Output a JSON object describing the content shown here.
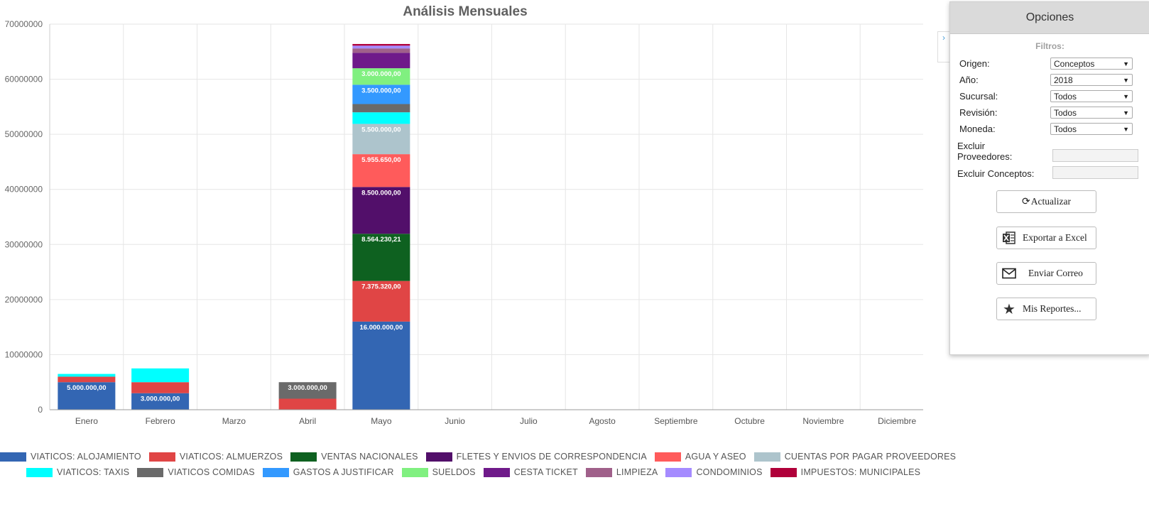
{
  "chart_data": {
    "type": "bar",
    "stacked": true,
    "title": "Análisis Mensuales",
    "categories": [
      "Enero",
      "Febrero",
      "Marzo",
      "Abril",
      "Mayo",
      "Junio",
      "Julio",
      "Agosto",
      "Septiembre",
      "Octubre",
      "Noviembre",
      "Diciembre"
    ],
    "ylim": [
      0,
      70000000
    ],
    "yticks": [
      0,
      10000000,
      20000000,
      30000000,
      40000000,
      50000000,
      60000000,
      70000000
    ],
    "ytick_labels": [
      "0",
      "10000000",
      "20000000",
      "30000000",
      "40000000",
      "50000000",
      "60000000",
      "70000000"
    ],
    "grid": true,
    "legend_position": "bottom",
    "series": [
      {
        "name": "VIATICOS: ALOJAMIENTO",
        "color": "#3366b3",
        "values": [
          5000000,
          3000000,
          0,
          0,
          16000000,
          0,
          0,
          0,
          0,
          0,
          0,
          0
        ],
        "labels": [
          "5.000.000,00",
          "3.000.000,00",
          "",
          "",
          "16.000.000,00",
          "",
          "",
          "",
          "",
          "",
          "",
          ""
        ]
      },
      {
        "name": "VIATICOS: ALMUERZOS",
        "color": "#e04545",
        "values": [
          1000000,
          2000000,
          0,
          2000000,
          7375320,
          0,
          0,
          0,
          0,
          0,
          0,
          0
        ],
        "labels": [
          "",
          "",
          "",
          "",
          "7.375.320,00",
          "",
          "",
          "",
          "",
          "",
          "",
          ""
        ]
      },
      {
        "name": "VENTAS NACIONALES",
        "color": "#0e6120",
        "values": [
          0,
          0,
          0,
          0,
          8564230.21,
          0,
          0,
          0,
          0,
          0,
          0,
          0
        ],
        "labels": [
          "",
          "",
          "",
          "",
          "8.564.230,21",
          "",
          "",
          "",
          "",
          "",
          "",
          ""
        ]
      },
      {
        "name": "FLETES Y ENVIOS DE CORRESPONDENCIA",
        "color": "#520f6a",
        "values": [
          0,
          0,
          0,
          0,
          8500000,
          0,
          0,
          0,
          0,
          0,
          0,
          0
        ],
        "labels": [
          "",
          "",
          "",
          "",
          "8.500.000,00",
          "",
          "",
          "",
          "",
          "",
          "",
          ""
        ]
      },
      {
        "name": "AGUA Y ASEO",
        "color": "#ff5b5b",
        "values": [
          0,
          0,
          0,
          0,
          5955650,
          0,
          0,
          0,
          0,
          0,
          0,
          0
        ],
        "labels": [
          "",
          "",
          "",
          "",
          "5.955.650,00",
          "",
          "",
          "",
          "",
          "",
          "",
          ""
        ]
      },
      {
        "name": "CUENTAS POR PAGAR PROVEEDORES",
        "color": "#adc4cc",
        "values": [
          0,
          0,
          0,
          0,
          5500000,
          0,
          0,
          0,
          0,
          0,
          0,
          0
        ],
        "labels": [
          "",
          "",
          "",
          "",
          "5.500.000,00",
          "",
          "",
          "",
          "",
          "",
          "",
          ""
        ]
      },
      {
        "name": "VIATICOS: TAXIS",
        "color": "#00ffff",
        "values": [
          500000,
          2500000,
          0,
          0,
          2100000,
          0,
          0,
          0,
          0,
          0,
          0,
          0
        ],
        "labels": [
          "",
          "",
          "",
          "",
          "",
          "",
          "",
          "",
          "",
          "",
          "",
          ""
        ]
      },
      {
        "name": "VIATICOS COMIDAS",
        "color": "#6a6a6a",
        "values": [
          0,
          0,
          0,
          3000000,
          1500000,
          0,
          0,
          0,
          0,
          0,
          0,
          0
        ],
        "labels": [
          "",
          "",
          "",
          "3.000.000,00",
          "",
          "",
          "",
          "",
          "",
          "",
          "",
          ""
        ]
      },
      {
        "name": "GASTOS A JUSTIFICAR",
        "color": "#3399ff",
        "values": [
          0,
          0,
          0,
          0,
          3500000,
          0,
          0,
          0,
          0,
          0,
          0,
          0
        ],
        "labels": [
          "",
          "",
          "",
          "",
          "3.500.000,00",
          "",
          "",
          "",
          "",
          "",
          "",
          ""
        ]
      },
      {
        "name": "SUELDOS",
        "color": "#80f080",
        "values": [
          0,
          0,
          0,
          0,
          3000000,
          0,
          0,
          0,
          0,
          0,
          0,
          0
        ],
        "labels": [
          "",
          "",
          "",
          "",
          "3.000.000,00",
          "",
          "",
          "",
          "",
          "",
          "",
          ""
        ]
      },
      {
        "name": "CESTA TICKET",
        "color": "#6f1a8a",
        "values": [
          0,
          0,
          0,
          0,
          2800000,
          0,
          0,
          0,
          0,
          0,
          0,
          0
        ],
        "labels": [
          "",
          "",
          "",
          "",
          "",
          "",
          "",
          "",
          "",
          "",
          "",
          ""
        ]
      },
      {
        "name": "LIMPIEZA",
        "color": "#a0608a",
        "values": [
          0,
          0,
          0,
          0,
          800000,
          0,
          0,
          0,
          0,
          0,
          0,
          0
        ],
        "labels": [
          "",
          "",
          "",
          "",
          "",
          "",
          "",
          "",
          "",
          "",
          "",
          ""
        ]
      },
      {
        "name": "CONDOMINIOS",
        "color": "#a58bff",
        "values": [
          0,
          0,
          0,
          0,
          500000,
          0,
          0,
          0,
          0,
          0,
          0,
          0
        ],
        "labels": [
          "",
          "",
          "",
          "",
          "",
          "",
          "",
          "",
          "",
          "",
          "",
          ""
        ]
      },
      {
        "name": "IMPUESTOS: MUNICIPALES",
        "color": "#b0003a",
        "values": [
          0,
          0,
          0,
          0,
          300000,
          0,
          0,
          0,
          0,
          0,
          0,
          0
        ],
        "labels": [
          "",
          "",
          "",
          "",
          "",
          "",
          "",
          "",
          "",
          "",
          "",
          ""
        ]
      }
    ]
  },
  "panel": {
    "title": "Opciones",
    "filters_title": "Filtros:",
    "filters": [
      {
        "label": "Origen:",
        "value": "Conceptos"
      },
      {
        "label": "Año:",
        "value": "2018"
      },
      {
        "label": "Sucursal:",
        "value": "Todos"
      },
      {
        "label": "Revisión:",
        "value": "Todos"
      },
      {
        "label": "Moneda:",
        "value": "Todos"
      }
    ],
    "exclude_providers_line1": "Excluir",
    "exclude_providers_line2": "Proveedores:",
    "exclude_concepts": "Excluir Conceptos:",
    "buttons": {
      "refresh": "Actualizar",
      "export": "Exportar a Excel",
      "email": "Enviar Correo",
      "reports": "Mis Reportes..."
    },
    "collapse_glyph": "›"
  }
}
